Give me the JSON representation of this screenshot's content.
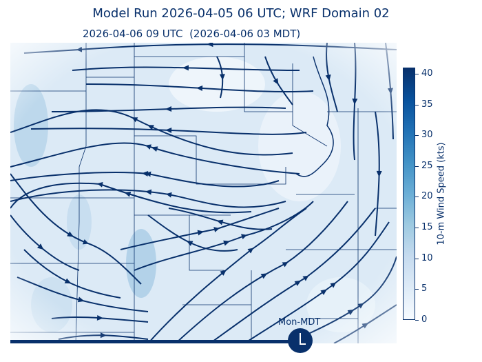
{
  "title": "Model Run 2026-04-05 06 UTC; WRF Domain 02",
  "subtitle": "2026-04-06 09 UTC  (2026-04-06 03 MDT)",
  "colorbar": {
    "label": "10-m Wind Speed (kts)",
    "ticks": [
      "0",
      "5",
      "10",
      "15",
      "20",
      "25",
      "30",
      "35",
      "40"
    ],
    "min": 0,
    "max": 41,
    "colormap": "Blues",
    "color_low": "#f7fbff",
    "color_high": "#08306b"
  },
  "timeline": {
    "label": "Mon-MDT",
    "progress": 0.75,
    "icon": "clock-icon"
  },
  "map": {
    "streamline_color": "#08306b",
    "boundary_color": "#08306b"
  }
}
